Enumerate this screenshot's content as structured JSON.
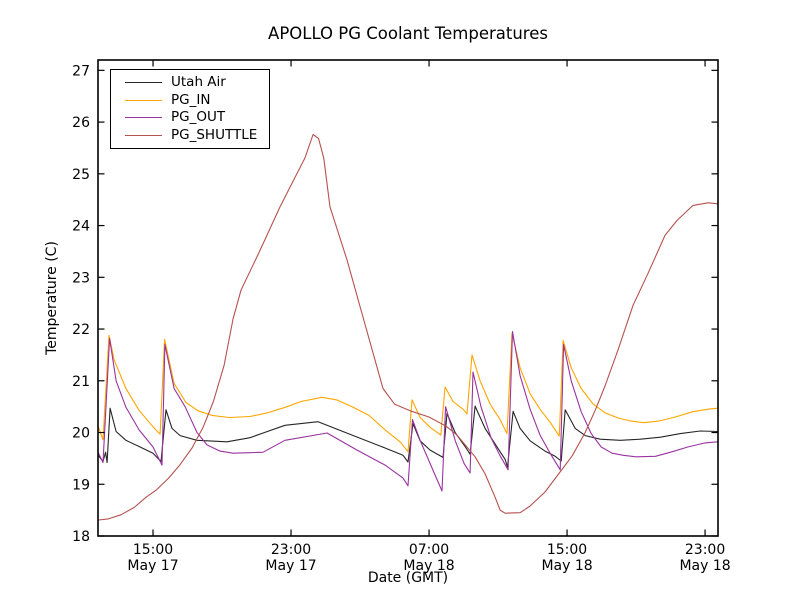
{
  "figure": {
    "title": "APOLLO PG Coolant Temperatures",
    "xlabel": "Date (GMT)",
    "ylabel": "Temperature (C)"
  },
  "chart_data": {
    "type": "line",
    "title": "APOLLO PG Coolant Temperatures",
    "xlabel": "Date (GMT)",
    "ylabel": "Temperature (C)",
    "x_unit": "hours since May 17 00:00 GMT",
    "xlim": [
      11.81,
      47.75
    ],
    "ylim": [
      18,
      27.2
    ],
    "y_ticks": [
      18,
      19,
      20,
      21,
      22,
      23,
      24,
      25,
      26,
      27
    ],
    "x_ticks": [
      {
        "hour": 15,
        "line1": "15:00",
        "line2": "May 17"
      },
      {
        "hour": 23,
        "line1": "23:00",
        "line2": "May 17"
      },
      {
        "hour": 31,
        "line1": "07:00",
        "line2": "May 18"
      },
      {
        "hour": 39,
        "line1": "15:00",
        "line2": "May 18"
      },
      {
        "hour": 47,
        "line1": "23:00",
        "line2": "May 18"
      }
    ],
    "grid": false,
    "legend_position": "upper-left",
    "series": [
      {
        "name": "Utah Air",
        "color": "#262626",
        "points": [
          [
            11.84,
            19.55
          ],
          [
            12.1,
            19.44
          ],
          [
            12.25,
            19.62
          ],
          [
            12.34,
            19.42
          ],
          [
            12.51,
            20.47
          ],
          [
            12.86,
            20.02
          ],
          [
            13.43,
            19.85
          ],
          [
            14.25,
            19.72
          ],
          [
            15.0,
            19.6
          ],
          [
            15.46,
            19.44
          ],
          [
            15.75,
            20.44
          ],
          [
            16.1,
            20.08
          ],
          [
            16.57,
            19.94
          ],
          [
            17.55,
            19.85
          ],
          [
            19.29,
            19.82
          ],
          [
            20.62,
            19.9
          ],
          [
            21.38,
            19.99
          ],
          [
            22.65,
            20.14
          ],
          [
            24.57,
            20.21
          ],
          [
            26.54,
            19.95
          ],
          [
            28.45,
            19.7
          ],
          [
            29.49,
            19.56
          ],
          [
            29.78,
            19.43
          ],
          [
            30.07,
            20.17
          ],
          [
            30.48,
            19.84
          ],
          [
            31.06,
            19.66
          ],
          [
            31.81,
            19.52
          ],
          [
            32.04,
            20.37
          ],
          [
            32.51,
            20.0
          ],
          [
            33.09,
            19.73
          ],
          [
            33.38,
            19.58
          ],
          [
            33.67,
            20.51
          ],
          [
            34.25,
            20.08
          ],
          [
            34.83,
            19.78
          ],
          [
            35.41,
            19.48
          ],
          [
            35.55,
            19.33
          ],
          [
            35.87,
            20.41
          ],
          [
            36.28,
            20.08
          ],
          [
            36.86,
            19.84
          ],
          [
            37.72,
            19.64
          ],
          [
            38.31,
            19.54
          ],
          [
            38.66,
            19.45
          ],
          [
            38.89,
            20.44
          ],
          [
            39.47,
            20.08
          ],
          [
            40.05,
            19.94
          ],
          [
            40.92,
            19.87
          ],
          [
            42.08,
            19.85
          ],
          [
            43.25,
            19.87
          ],
          [
            44.41,
            19.91
          ],
          [
            45.57,
            19.98
          ],
          [
            46.72,
            20.03
          ],
          [
            47.75,
            20.02
          ]
        ]
      },
      {
        "name": "PG_IN",
        "color": "#ffa500",
        "points": [
          [
            11.84,
            20.1
          ],
          [
            12.1,
            19.86
          ],
          [
            12.45,
            21.88
          ],
          [
            12.75,
            21.4
          ],
          [
            13.43,
            20.85
          ],
          [
            14.19,
            20.43
          ],
          [
            15.0,
            20.11
          ],
          [
            15.41,
            19.97
          ],
          [
            15.67,
            21.8
          ],
          [
            16.22,
            20.95
          ],
          [
            16.91,
            20.58
          ],
          [
            17.61,
            20.42
          ],
          [
            18.42,
            20.33
          ],
          [
            19.41,
            20.29
          ],
          [
            20.62,
            20.31
          ],
          [
            21.62,
            20.38
          ],
          [
            22.6,
            20.48
          ],
          [
            23.58,
            20.6
          ],
          [
            24.8,
            20.68
          ],
          [
            25.65,
            20.63
          ],
          [
            26.54,
            20.5
          ],
          [
            27.52,
            20.33
          ],
          [
            28.45,
            20.05
          ],
          [
            29.32,
            19.82
          ],
          [
            29.78,
            19.63
          ],
          [
            30.01,
            20.63
          ],
          [
            30.48,
            20.29
          ],
          [
            31.06,
            20.1
          ],
          [
            31.68,
            19.95
          ],
          [
            31.93,
            20.88
          ],
          [
            32.39,
            20.6
          ],
          [
            32.97,
            20.45
          ],
          [
            33.2,
            20.36
          ],
          [
            33.49,
            21.5
          ],
          [
            33.96,
            21.0
          ],
          [
            34.54,
            20.55
          ],
          [
            35.12,
            20.25
          ],
          [
            35.52,
            19.98
          ],
          [
            35.81,
            21.92
          ],
          [
            36.28,
            21.25
          ],
          [
            36.86,
            20.75
          ],
          [
            37.43,
            20.45
          ],
          [
            38.02,
            20.2
          ],
          [
            38.55,
            19.93
          ],
          [
            38.77,
            21.78
          ],
          [
            39.24,
            21.25
          ],
          [
            39.82,
            20.85
          ],
          [
            40.51,
            20.55
          ],
          [
            41.21,
            20.38
          ],
          [
            41.96,
            20.28
          ],
          [
            42.7,
            20.22
          ],
          [
            43.46,
            20.19
          ],
          [
            44.3,
            20.22
          ],
          [
            45.28,
            20.3
          ],
          [
            46.26,
            20.4
          ],
          [
            47.17,
            20.45
          ],
          [
            47.75,
            20.47
          ]
        ]
      },
      {
        "name": "PG_OUT",
        "color": "#9933a0",
        "points": [
          [
            11.84,
            19.6
          ],
          [
            12.1,
            19.42
          ],
          [
            12.48,
            21.82
          ],
          [
            12.86,
            21.0
          ],
          [
            13.43,
            20.49
          ],
          [
            14.19,
            20.05
          ],
          [
            15.0,
            19.72
          ],
          [
            15.52,
            19.37
          ],
          [
            15.69,
            21.7
          ],
          [
            16.22,
            20.85
          ],
          [
            16.86,
            20.5
          ],
          [
            17.55,
            20.0
          ],
          [
            18.13,
            19.76
          ],
          [
            18.88,
            19.64
          ],
          [
            19.64,
            19.6
          ],
          [
            20.62,
            19.61
          ],
          [
            21.38,
            19.62
          ],
          [
            22.65,
            19.85
          ],
          [
            25.09,
            19.99
          ],
          [
            26.83,
            19.66
          ],
          [
            28.45,
            19.37
          ],
          [
            29.49,
            19.12
          ],
          [
            29.78,
            18.97
          ],
          [
            30.04,
            20.25
          ],
          [
            30.48,
            19.85
          ],
          [
            31.0,
            19.45
          ],
          [
            31.75,
            18.87
          ],
          [
            31.96,
            20.5
          ],
          [
            32.51,
            19.85
          ],
          [
            33.03,
            19.4
          ],
          [
            33.38,
            19.22
          ],
          [
            33.55,
            21.17
          ],
          [
            34.01,
            20.5
          ],
          [
            34.59,
            19.9
          ],
          [
            35.12,
            19.55
          ],
          [
            35.58,
            19.28
          ],
          [
            35.84,
            21.95
          ],
          [
            36.28,
            21.1
          ],
          [
            36.86,
            20.45
          ],
          [
            37.43,
            19.95
          ],
          [
            38.02,
            19.6
          ],
          [
            38.6,
            19.28
          ],
          [
            38.8,
            21.7
          ],
          [
            39.24,
            21.0
          ],
          [
            39.82,
            20.4
          ],
          [
            40.4,
            19.98
          ],
          [
            40.98,
            19.72
          ],
          [
            41.61,
            19.6
          ],
          [
            42.26,
            19.56
          ],
          [
            43.0,
            19.53
          ],
          [
            44.12,
            19.54
          ],
          [
            45.0,
            19.62
          ],
          [
            46.0,
            19.72
          ],
          [
            47.0,
            19.8
          ],
          [
            47.75,
            19.82
          ]
        ]
      },
      {
        "name": "PG_SHUTTLE",
        "color": "#b5524f",
        "points": [
          [
            11.84,
            18.31
          ],
          [
            12.4,
            18.33
          ],
          [
            13.14,
            18.41
          ],
          [
            13.9,
            18.55
          ],
          [
            14.6,
            18.75
          ],
          [
            15.23,
            18.9
          ],
          [
            15.9,
            19.12
          ],
          [
            16.57,
            19.38
          ],
          [
            17.26,
            19.7
          ],
          [
            17.9,
            20.1
          ],
          [
            18.5,
            20.6
          ],
          [
            19.12,
            21.3
          ],
          [
            19.64,
            22.2
          ],
          [
            20.1,
            22.75
          ],
          [
            21.2,
            23.52
          ],
          [
            22.36,
            24.36
          ],
          [
            23.23,
            24.93
          ],
          [
            23.8,
            25.3
          ],
          [
            24.28,
            25.76
          ],
          [
            24.6,
            25.68
          ],
          [
            24.9,
            25.3
          ],
          [
            25.26,
            24.36
          ],
          [
            26.25,
            23.33
          ],
          [
            27.17,
            22.23
          ],
          [
            28.33,
            20.85
          ],
          [
            29.0,
            20.55
          ],
          [
            29.9,
            20.42
          ],
          [
            31.0,
            20.3
          ],
          [
            32.0,
            20.12
          ],
          [
            32.62,
            19.95
          ],
          [
            33.67,
            19.53
          ],
          [
            34.25,
            19.2
          ],
          [
            34.83,
            18.75
          ],
          [
            35.12,
            18.5
          ],
          [
            35.41,
            18.44
          ],
          [
            36.28,
            18.45
          ],
          [
            36.86,
            18.58
          ],
          [
            37.72,
            18.85
          ],
          [
            38.4,
            19.15
          ],
          [
            39.3,
            19.55
          ],
          [
            40.05,
            20.0
          ],
          [
            40.63,
            20.43
          ],
          [
            41.2,
            20.9
          ],
          [
            41.96,
            21.6
          ],
          [
            42.83,
            22.46
          ],
          [
            43.7,
            23.08
          ],
          [
            44.68,
            23.81
          ],
          [
            45.38,
            24.1
          ],
          [
            46.3,
            24.39
          ],
          [
            47.17,
            24.44
          ],
          [
            47.75,
            24.42
          ]
        ]
      }
    ]
  }
}
